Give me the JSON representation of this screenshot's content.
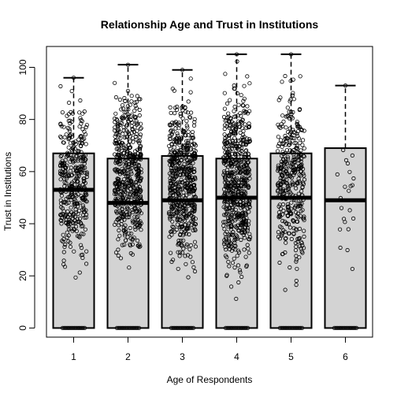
{
  "chart_data": {
    "type": "boxplot",
    "title": "Relationship Age and Trust in Institutions",
    "xlabel": "Age of Respondents",
    "ylabel": "Trust in Institutions",
    "categories": [
      "1",
      "2",
      "3",
      "4",
      "5",
      "6"
    ],
    "y_ticks": [
      0,
      20,
      40,
      60,
      80,
      100
    ],
    "ylim": [
      -3.5,
      108
    ],
    "box_fill": "#d3d3d3",
    "boxes": [
      {
        "category": "1",
        "q1": 0,
        "median": 53,
        "q3": 67,
        "whisker_low": 0,
        "whisker_high": 96
      },
      {
        "category": "2",
        "q1": 0,
        "median": 48,
        "q3": 65,
        "whisker_low": 0,
        "whisker_high": 101
      },
      {
        "category": "3",
        "q1": 0,
        "median": 49,
        "q3": 66,
        "whisker_low": 0,
        "whisker_high": 99
      },
      {
        "category": "4",
        "q1": 0,
        "median": 50,
        "q3": 65,
        "whisker_low": 0,
        "whisker_high": 105
      },
      {
        "category": "5",
        "q1": 0,
        "median": 50,
        "q3": 67,
        "whisker_low": 0,
        "whisker_high": 105
      },
      {
        "category": "6",
        "q1": 0,
        "median": 49,
        "q3": 69,
        "whisker_low": 0,
        "whisker_high": 93
      }
    ],
    "points_overlay": "jittered raw observations",
    "point_ranges": [
      {
        "category": "1",
        "min": 15,
        "max": 96,
        "zeros": true
      },
      {
        "category": "2",
        "min": 15,
        "max": 101,
        "zeros": true
      },
      {
        "category": "3",
        "min": 15,
        "max": 99,
        "zeros": true
      },
      {
        "category": "4",
        "min": 7,
        "max": 105,
        "zeros": true
      },
      {
        "category": "5",
        "min": 10,
        "max": 105,
        "zeros": true
      },
      {
        "category": "6",
        "min": 4,
        "max": 93,
        "zeros": true
      }
    ],
    "grid": false,
    "legend": "none"
  }
}
